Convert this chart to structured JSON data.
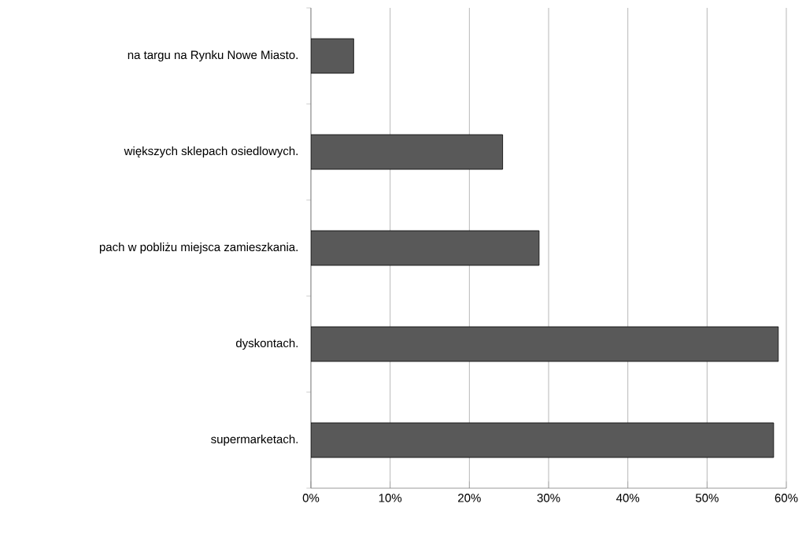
{
  "chart_data": {
    "type": "bar",
    "orientation": "horizontal",
    "categories": [
      "na targu na Rynku Nowe Miasto.",
      "większych sklepach osiedlowych.",
      "pach w pobliżu miejsca zamieszkania.",
      "dyskontach.",
      "supermarketach."
    ],
    "values": [
      5.4,
      24.2,
      28.8,
      59.0,
      58.4
    ],
    "color": "#595959",
    "xlim": [
      0,
      60
    ],
    "xticks": [
      {
        "value": 0,
        "label": "0%"
      },
      {
        "value": 10,
        "label": "10%"
      },
      {
        "value": 20,
        "label": "20%"
      },
      {
        "value": 30,
        "label": "30%"
      },
      {
        "value": 40,
        "label": "40%"
      },
      {
        "value": 50,
        "label": "50%"
      },
      {
        "value": 60,
        "label": "60%"
      }
    ],
    "grid": "x"
  }
}
